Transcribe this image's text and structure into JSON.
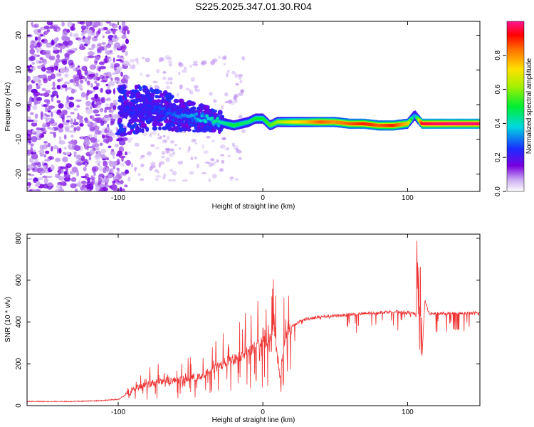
{
  "title": "S225.2025.347.01.30.R04",
  "chart_data": [
    {
      "type": "heatmap",
      "name": "spectrogram",
      "xlabel": "Height of straight line (km)",
      "ylabel": "Frequency (Hz)",
      "xlim": [
        -163,
        150
      ],
      "ylim": [
        -25,
        24
      ],
      "xticks": [
        -100,
        0,
        100
      ],
      "xtick_labels": [
        "-100",
        "0",
        "100"
      ],
      "yticks": [
        20,
        10,
        0,
        -10,
        -20
      ],
      "ytick_labels": [
        "20",
        "10",
        "0",
        "-10",
        "-20"
      ],
      "colorbar": {
        "label": "Normalized spectral amplitude",
        "range": [
          0.0,
          1.0
        ],
        "ticks": [
          0.0,
          0.2,
          0.4,
          0.6,
          0.8
        ],
        "tick_labels": [
          "0.0",
          "0.2",
          "0.4",
          "0.6",
          "0.8"
        ]
      },
      "ridge": {
        "x": [
          -100,
          -90,
          -80,
          -70,
          -60,
          -50,
          -40,
          -30,
          -20,
          -10,
          -5,
          0,
          5,
          10,
          20,
          30,
          40,
          50,
          60,
          70,
          80,
          90,
          100,
          105,
          110,
          120,
          130,
          140,
          150
        ],
        "freq": [
          -2,
          -1.5,
          -1,
          -1.5,
          -2.5,
          -3.5,
          -4,
          -5,
          -6,
          -5,
          -4,
          -4,
          -6,
          -5,
          -5,
          -5,
          -5,
          -5,
          -5.5,
          -5.5,
          -6,
          -6,
          -5.5,
          -3,
          -5.5,
          -5.5,
          -5.5,
          -5.5,
          -5.5
        ],
        "amplitude": [
          0.18,
          0.2,
          0.2,
          0.22,
          0.25,
          0.3,
          0.35,
          0.4,
          0.5,
          0.45,
          0.5,
          0.5,
          0.55,
          0.6,
          0.7,
          0.75,
          0.85,
          0.8,
          0.85,
          0.9,
          0.85,
          0.9,
          0.75,
          0.3,
          0.95,
          0.97,
          0.98,
          0.98,
          0.98
        ]
      }
    },
    {
      "type": "line",
      "name": "snr",
      "xlabel": "Height of straight line (km)",
      "ylabel": "SNR (10 * v/v)",
      "xlim": [
        -163,
        150
      ],
      "ylim": [
        0,
        820
      ],
      "xticks": [
        -100,
        0,
        100
      ],
      "xtick_labels": [
        "-100",
        "0",
        "100"
      ],
      "yticks": [
        0,
        200,
        400,
        600,
        800
      ],
      "ytick_labels": [
        "0",
        "200",
        "400",
        "600",
        "800"
      ],
      "color": "#ee3333",
      "series": [
        {
          "name": "SNR",
          "x": [
            -163,
            -150,
            -130,
            -110,
            -100,
            -95,
            -90,
            -85,
            -80,
            -75,
            -70,
            -65,
            -60,
            -55,
            -50,
            -45,
            -40,
            -35,
            -30,
            -25,
            -20,
            -15,
            -10,
            -5,
            0,
            5,
            7,
            8,
            10,
            12,
            15,
            20,
            25,
            30,
            40,
            50,
            60,
            70,
            80,
            90,
            100,
            105,
            108,
            110,
            112,
            115,
            120,
            130,
            140,
            150
          ],
          "y": [
            20,
            20,
            20,
            25,
            30,
            50,
            80,
            90,
            100,
            110,
            120,
            120,
            120,
            125,
            130,
            135,
            150,
            170,
            190,
            210,
            220,
            240,
            260,
            280,
            300,
            320,
            360,
            380,
            220,
            140,
            320,
            380,
            400,
            415,
            425,
            430,
            435,
            440,
            445,
            450,
            445,
            440,
            400,
            240,
            500,
            440,
            440,
            440,
            440,
            445
          ]
        }
      ],
      "annotations": [
        {
          "x": 108,
          "y": 810,
          "note": "spike"
        }
      ]
    }
  ]
}
